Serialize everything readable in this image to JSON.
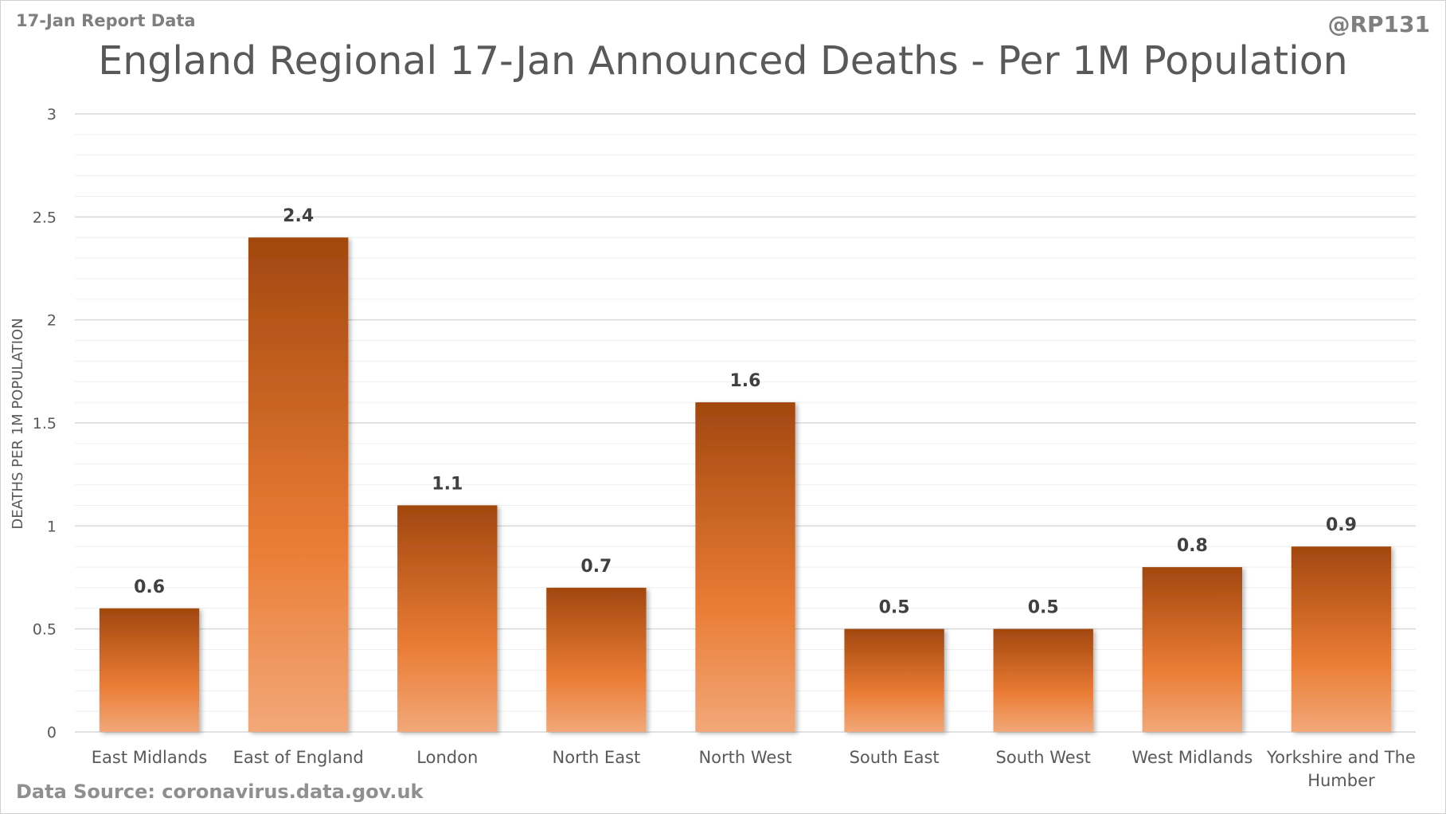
{
  "header": {
    "report_label": "17-Jan Report Data",
    "handle": "@RP131"
  },
  "footer": {
    "source": "Data Source: coronavirus.data.gov.uk"
  },
  "colors": {
    "bar_dark": "#a2470f",
    "bar_mid": "#ea7c35",
    "bar_light": "#f2a879",
    "gridline_major": "#d9d9d9",
    "gridline_minor": "#efefef"
  },
  "chart_data": {
    "type": "bar",
    "title": "England Regional 17-Jan Announced Deaths - Per 1M Population",
    "xlabel": "",
    "ylabel": "DEATHS PER 1M POPULATION",
    "ylim": [
      0,
      3
    ],
    "yticks": [
      "0",
      "0.5",
      "1",
      "1.5",
      "2",
      "2.5",
      "3"
    ],
    "grid": true,
    "legend": "none",
    "categories": [
      [
        "East Midlands"
      ],
      [
        "East of England"
      ],
      [
        "London"
      ],
      [
        "North East"
      ],
      [
        "North West"
      ],
      [
        "South East"
      ],
      [
        "South West"
      ],
      [
        "West Midlands"
      ],
      [
        "Yorkshire and The",
        "Humber"
      ]
    ],
    "values": [
      0.6,
      2.4,
      1.1,
      0.7,
      1.6,
      0.5,
      0.5,
      0.8,
      0.9
    ],
    "value_labels": [
      "0.6",
      "2.4",
      "1.1",
      "0.7",
      "1.6",
      "0.5",
      "0.5",
      "0.8",
      "0.9"
    ]
  }
}
